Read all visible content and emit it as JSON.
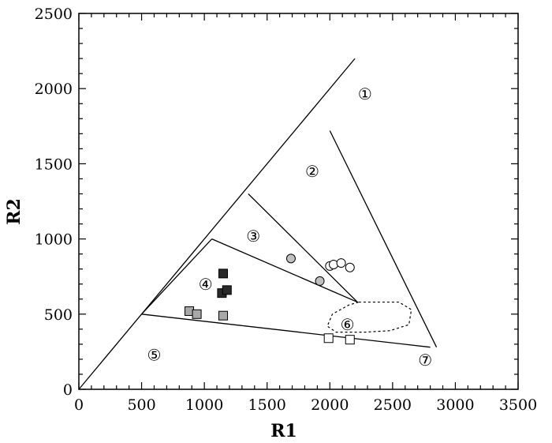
{
  "chart_data": {
    "type": "scatter",
    "xlabel": "R1",
    "ylabel": "R2",
    "xlim": [
      0,
      3500
    ],
    "ylim": [
      0,
      2500
    ],
    "xticks": [
      0,
      500,
      1000,
      1500,
      2000,
      2500,
      3000,
      3500
    ],
    "yticks": [
      0,
      500,
      1000,
      1500,
      2000,
      2500
    ],
    "grid": false,
    "lines": [
      {
        "name": "outer-boundary",
        "points": [
          [
            0,
            0
          ],
          [
            2200,
            2200
          ]
        ]
      },
      {
        "name": "boundary-1-2",
        "points": [
          [
            2000,
            1720
          ],
          [
            2850,
            280
          ]
        ]
      },
      {
        "name": "boundary-2-3",
        "points": [
          [
            1350,
            1300
          ],
          [
            2220,
            580
          ]
        ]
      },
      {
        "name": "boundary-3-4",
        "points": [
          [
            1060,
            1000
          ],
          [
            2220,
            580
          ]
        ]
      },
      {
        "name": "boundary-4-5",
        "points": [
          [
            500,
            500
          ],
          [
            2800,
            280
          ]
        ]
      },
      {
        "name": "boundary-lower-left",
        "points": [
          [
            500,
            500
          ],
          [
            1060,
            1000
          ]
        ]
      }
    ],
    "dashed_region": {
      "name": "region-6-outline",
      "points": [
        [
          2230,
          580
        ],
        [
          2550,
          580
        ],
        [
          2650,
          530
        ],
        [
          2630,
          430
        ],
        [
          2480,
          390
        ],
        [
          2280,
          380
        ],
        [
          2050,
          380
        ],
        [
          1980,
          420
        ],
        [
          2020,
          500
        ],
        [
          2150,
          560
        ],
        [
          2230,
          580
        ]
      ]
    },
    "regions": [
      {
        "label": "①",
        "x": 2280,
        "y": 1970
      },
      {
        "label": "②",
        "x": 1860,
        "y": 1455
      },
      {
        "label": "③",
        "x": 1390,
        "y": 1025
      },
      {
        "label": "④",
        "x": 1010,
        "y": 705
      },
      {
        "label": "⑤",
        "x": 600,
        "y": 235
      },
      {
        "label": "⑥",
        "x": 2140,
        "y": 435
      },
      {
        "label": "⑦",
        "x": 2760,
        "y": 200
      }
    ],
    "series": [
      {
        "marker": "circle-light",
        "color": "#ffffff",
        "points": [
          [
            2000,
            820
          ],
          [
            2030,
            830
          ],
          [
            2090,
            840
          ],
          [
            2160,
            810
          ]
        ]
      },
      {
        "marker": "circle-gray",
        "color": "#c0c0c0",
        "points": [
          [
            1690,
            870
          ],
          [
            1920,
            720
          ]
        ]
      },
      {
        "marker": "square-dark",
        "color": "#2a2a2a",
        "points": [
          [
            1150,
            770
          ],
          [
            1140,
            640
          ],
          [
            1180,
            660
          ]
        ]
      },
      {
        "marker": "square-gray",
        "color": "#a8a8a8",
        "points": [
          [
            880,
            520
          ],
          [
            940,
            500
          ],
          [
            1150,
            490
          ]
        ]
      },
      {
        "marker": "square-light",
        "color": "#ffffff",
        "points": [
          [
            1990,
            340
          ],
          [
            2160,
            330
          ]
        ]
      }
    ]
  }
}
